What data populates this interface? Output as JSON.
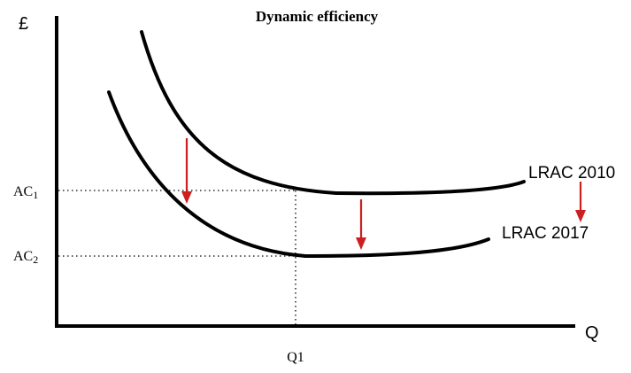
{
  "title": "Dynamic efficiency",
  "axes": {
    "y_label": "£",
    "x_label": "Q"
  },
  "ticks": {
    "ac1": {
      "main": "AC",
      "sub": "1"
    },
    "ac2": {
      "main": "AC",
      "sub": "2"
    },
    "q1": "Q1"
  },
  "curves": [
    {
      "label": "LRAC 2010"
    },
    {
      "label": "LRAC 2017"
    }
  ],
  "colors": {
    "curve": "#000000",
    "arrow": "#cc1f1f"
  },
  "arrows": {
    "count": 3,
    "direction": "down"
  }
}
